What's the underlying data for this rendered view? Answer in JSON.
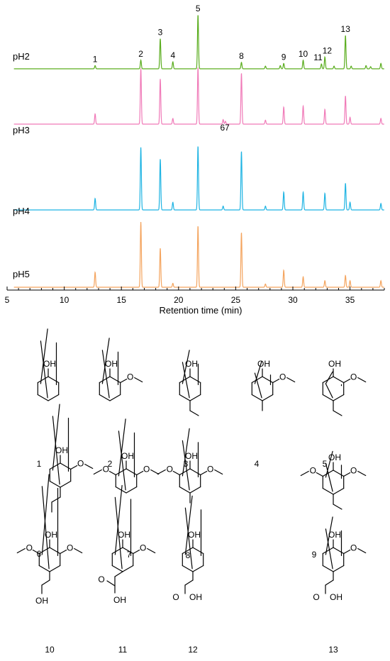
{
  "chart_data": {
    "type": "line",
    "title": "",
    "xlabel": "Retention time (min)",
    "ylabel": "",
    "xlim": [
      5,
      38
    ],
    "xticks": [
      5,
      10,
      15,
      20,
      25,
      30,
      35
    ],
    "grid": false,
    "legend": "none",
    "series": [
      {
        "name": "pH2",
        "color": "#5aad1e",
        "peaks": [
          {
            "x": 12.7,
            "y": 0.06
          },
          {
            "x": 16.7,
            "y": 0.16
          },
          {
            "x": 18.4,
            "y": 0.56
          },
          {
            "x": 19.5,
            "y": 0.13
          },
          {
            "x": 21.7,
            "y": 1.0
          },
          {
            "x": 25.5,
            "y": 0.12
          },
          {
            "x": 27.6,
            "y": 0.05
          },
          {
            "x": 28.9,
            "y": 0.06
          },
          {
            "x": 29.2,
            "y": 0.1
          },
          {
            "x": 30.9,
            "y": 0.16
          },
          {
            "x": 32.5,
            "y": 0.09
          },
          {
            "x": 32.8,
            "y": 0.22
          },
          {
            "x": 33.6,
            "y": 0.05
          },
          {
            "x": 34.6,
            "y": 0.62
          },
          {
            "x": 35.1,
            "y": 0.05
          },
          {
            "x": 36.4,
            "y": 0.06
          },
          {
            "x": 36.8,
            "y": 0.04
          },
          {
            "x": 37.7,
            "y": 0.1
          }
        ]
      },
      {
        "name": "pH3",
        "color": "#f07ab8",
        "peaks": [
          {
            "x": 12.7,
            "y": 0.18
          },
          {
            "x": 16.7,
            "y": 0.98
          },
          {
            "x": 18.4,
            "y": 0.8
          },
          {
            "x": 19.5,
            "y": 0.1
          },
          {
            "x": 21.7,
            "y": 1.0
          },
          {
            "x": 23.9,
            "y": 0.08
          },
          {
            "x": 24.1,
            "y": 0.05
          },
          {
            "x": 25.5,
            "y": 0.9
          },
          {
            "x": 27.6,
            "y": 0.07
          },
          {
            "x": 29.2,
            "y": 0.3
          },
          {
            "x": 30.9,
            "y": 0.32
          },
          {
            "x": 32.8,
            "y": 0.26
          },
          {
            "x": 34.6,
            "y": 0.5
          },
          {
            "x": 35.0,
            "y": 0.12
          },
          {
            "x": 37.7,
            "y": 0.1
          }
        ]
      },
      {
        "name": "pH4",
        "color": "#1fb4e3",
        "peaks": [
          {
            "x": 12.7,
            "y": 0.18
          },
          {
            "x": 16.7,
            "y": 0.98
          },
          {
            "x": 18.4,
            "y": 0.8
          },
          {
            "x": 19.5,
            "y": 0.12
          },
          {
            "x": 21.7,
            "y": 1.0
          },
          {
            "x": 23.9,
            "y": 0.06
          },
          {
            "x": 25.5,
            "y": 0.92
          },
          {
            "x": 27.6,
            "y": 0.06
          },
          {
            "x": 29.2,
            "y": 0.28
          },
          {
            "x": 30.9,
            "y": 0.28
          },
          {
            "x": 32.8,
            "y": 0.26
          },
          {
            "x": 34.6,
            "y": 0.42
          },
          {
            "x": 35.0,
            "y": 0.12
          },
          {
            "x": 37.7,
            "y": 0.1
          }
        ]
      },
      {
        "name": "pH5",
        "color": "#f4a45e",
        "peaks": [
          {
            "x": 12.7,
            "y": 0.23
          },
          {
            "x": 16.7,
            "y": 1.0
          },
          {
            "x": 18.4,
            "y": 0.6
          },
          {
            "x": 19.5,
            "y": 0.06
          },
          {
            "x": 21.7,
            "y": 0.94
          },
          {
            "x": 25.5,
            "y": 0.84
          },
          {
            "x": 27.6,
            "y": 0.05
          },
          {
            "x": 29.2,
            "y": 0.26
          },
          {
            "x": 30.9,
            "y": 0.16
          },
          {
            "x": 32.8,
            "y": 0.1
          },
          {
            "x": 34.6,
            "y": 0.18
          },
          {
            "x": 35.0,
            "y": 0.1
          },
          {
            "x": 37.7,
            "y": 0.1
          }
        ]
      }
    ],
    "peak_labels_pH2": [
      {
        "label": "1",
        "x": 12.7
      },
      {
        "label": "2",
        "x": 16.7
      },
      {
        "label": "3",
        "x": 18.4
      },
      {
        "label": "4",
        "x": 19.5
      },
      {
        "label": "5",
        "x": 21.7
      },
      {
        "label": "8",
        "x": 25.5
      },
      {
        "label": "9",
        "x": 29.2
      },
      {
        "label": "10",
        "x": 30.9
      },
      {
        "label": "11",
        "x": 32.2
      },
      {
        "label": "12",
        "x": 33.0
      },
      {
        "label": "13",
        "x": 34.6
      }
    ],
    "peak_labels_pH3": [
      {
        "label": "6",
        "x": 23.85
      },
      {
        "label": "7",
        "x": 24.25
      }
    ]
  },
  "compounds": [
    {
      "number": "1",
      "atoms": [
        "OH"
      ]
    },
    {
      "number": "2",
      "atoms": [
        "OH",
        "O"
      ]
    },
    {
      "number": "3",
      "atoms": [
        "OH"
      ]
    },
    {
      "number": "4",
      "atoms": [
        "OH",
        "O"
      ]
    },
    {
      "number": "5",
      "atoms": [
        "OH",
        "O"
      ]
    },
    {
      "number": "6",
      "atoms": [
        "OH",
        "O"
      ]
    },
    {
      "number": "7",
      "atoms": [
        "OH",
        "O",
        "O"
      ]
    },
    {
      "number": "8",
      "atoms": [
        "OH",
        "O",
        "O"
      ]
    },
    {
      "number": "9",
      "atoms": [
        "OH",
        "O",
        "O"
      ]
    },
    {
      "number": "10",
      "atoms": [
        "OH",
        "O",
        "O",
        "OH"
      ]
    },
    {
      "number": "11",
      "atoms": [
        "OH",
        "O",
        "O",
        "OH"
      ]
    },
    {
      "number": "12",
      "atoms": [
        "OH",
        "O",
        "OH"
      ]
    },
    {
      "number": "13",
      "atoms": [
        "OH",
        "O",
        "O",
        "OH"
      ]
    }
  ]
}
